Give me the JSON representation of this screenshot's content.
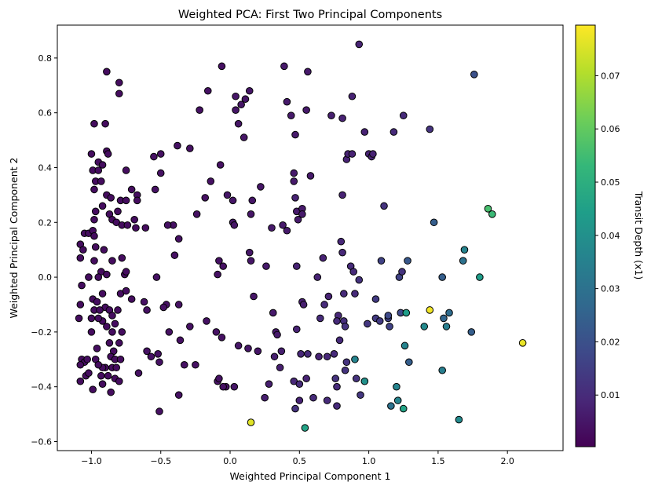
{
  "chart_data": {
    "type": "scatter",
    "title": "Weighted PCA: First Two Principal Components",
    "xlabel": "Weighted Principal Component 1",
    "ylabel": "Weighted Principal Component 2",
    "xlim": [
      -1.246,
      2.401
    ],
    "ylim": [
      -0.633,
      0.92
    ],
    "xticks": [
      -1.0,
      -0.5,
      0.0,
      0.5,
      1.0,
      1.5,
      2.0
    ],
    "xtick_labels": [
      "−1.0",
      "−0.5",
      "0.0",
      "0.5",
      "1.0",
      "1.5",
      "2.0"
    ],
    "yticks": [
      -0.6,
      -0.4,
      -0.2,
      0.0,
      0.2,
      0.4,
      0.6,
      0.8
    ],
    "ytick_labels": [
      "−0.6",
      "−0.4",
      "−0.2",
      "0.0",
      "0.2",
      "0.4",
      "0.6",
      "0.8"
    ],
    "grid": false,
    "colorbar": {
      "label": "Transit Depth (x1)",
      "colormap": "viridis",
      "range": [
        0.0003,
        0.0795
      ],
      "ticks": [
        0.01,
        0.02,
        0.03,
        0.04,
        0.05,
        0.06,
        0.07
      ],
      "tick_labels": [
        "0.01",
        "0.02",
        "0.03",
        "0.04",
        "0.05",
        "0.06",
        "0.07"
      ]
    },
    "point_fields": [
      "x",
      "y",
      "transit_depth"
    ],
    "points": [
      [
        -0.89,
        0.75,
        0.003
      ],
      [
        -0.8,
        0.71,
        0.003
      ],
      [
        -0.8,
        0.67,
        0.003
      ],
      [
        -0.98,
        0.56,
        0.003
      ],
      [
        -0.9,
        0.56,
        0.003
      ],
      [
        -1.0,
        0.45,
        0.003
      ],
      [
        -0.89,
        0.46,
        0.003
      ],
      [
        -0.88,
        0.45,
        0.003
      ],
      [
        -0.95,
        0.42,
        0.003
      ],
      [
        -0.92,
        0.41,
        0.003
      ],
      [
        -0.99,
        0.39,
        0.003
      ],
      [
        -0.95,
        0.39,
        0.003
      ],
      [
        -0.75,
        0.39,
        0.003
      ],
      [
        -0.97,
        0.35,
        0.003
      ],
      [
        -0.93,
        0.35,
        0.003
      ],
      [
        -0.98,
        0.32,
        0.003
      ],
      [
        -0.71,
        0.32,
        0.003
      ],
      [
        -0.67,
        0.3,
        0.003
      ],
      [
        -0.67,
        0.28,
        0.003
      ],
      [
        -0.89,
        0.3,
        0.003
      ],
      [
        -0.86,
        0.29,
        0.003
      ],
      [
        -0.79,
        0.28,
        0.003
      ],
      [
        -0.75,
        0.28,
        0.003
      ],
      [
        -0.97,
        0.24,
        0.003
      ],
      [
        -0.92,
        0.26,
        0.003
      ],
      [
        -0.81,
        0.24,
        0.003
      ],
      [
        -0.87,
        0.23,
        0.003
      ],
      [
        -0.85,
        0.21,
        0.003
      ],
      [
        -0.82,
        0.2,
        0.003
      ],
      [
        -0.78,
        0.19,
        0.003
      ],
      [
        -0.69,
        0.21,
        0.003
      ],
      [
        -0.68,
        0.18,
        0.003
      ],
      [
        -0.61,
        0.18,
        0.003
      ],
      [
        -0.74,
        0.19,
        0.003
      ],
      [
        -0.98,
        0.21,
        0.003
      ],
      [
        -1.05,
        0.16,
        0.003
      ],
      [
        -1.02,
        0.16,
        0.003
      ],
      [
        -0.99,
        0.17,
        0.003
      ],
      [
        -0.98,
        0.15,
        0.003
      ],
      [
        -1.08,
        0.12,
        0.003
      ],
      [
        -0.97,
        0.11,
        0.003
      ],
      [
        -0.91,
        0.1,
        0.003
      ],
      [
        -1.06,
        0.1,
        0.003
      ],
      [
        -1.08,
        0.07,
        0.003
      ],
      [
        -0.98,
        0.06,
        0.003
      ],
      [
        -0.78,
        0.07,
        0.003
      ],
      [
        -0.85,
        0.06,
        0.003
      ],
      [
        -0.93,
        0.02,
        0.003
      ],
      [
        -0.76,
        0.01,
        0.003
      ],
      [
        -1.02,
        0.0,
        0.003
      ],
      [
        -0.95,
        0.0,
        0.003
      ],
      [
        -0.89,
        0.01,
        0.003
      ],
      [
        -0.75,
        0.02,
        0.003
      ],
      [
        -1.08,
        -0.1,
        0.003
      ],
      [
        -0.99,
        -0.08,
        0.003
      ],
      [
        -0.96,
        -0.09,
        0.003
      ],
      [
        -0.92,
        -0.06,
        0.003
      ],
      [
        -0.79,
        -0.06,
        0.003
      ],
      [
        -0.75,
        -0.05,
        0.003
      ],
      [
        -0.71,
        -0.08,
        0.003
      ],
      [
        -1.07,
        -0.03,
        0.003
      ],
      [
        -0.9,
        -0.11,
        0.003
      ],
      [
        -0.98,
        -0.12,
        0.003
      ],
      [
        -0.94,
        -0.12,
        0.003
      ],
      [
        -0.87,
        -0.12,
        0.003
      ],
      [
        -0.85,
        -0.14,
        0.003
      ],
      [
        -0.81,
        -0.12,
        0.003
      ],
      [
        -1.0,
        -0.15,
        0.003
      ],
      [
        -0.92,
        -0.16,
        0.003
      ],
      [
        -0.95,
        -0.15,
        0.003
      ],
      [
        -0.89,
        -0.18,
        0.003
      ],
      [
        -1.09,
        -0.15,
        0.003
      ],
      [
        -0.83,
        -0.17,
        0.003
      ],
      [
        -0.78,
        -0.2,
        0.003
      ],
      [
        -1.0,
        -0.2,
        0.003
      ],
      [
        -0.85,
        -0.2,
        0.003
      ],
      [
        -0.8,
        -0.24,
        0.003
      ],
      [
        -0.96,
        -0.26,
        0.003
      ],
      [
        -0.87,
        -0.24,
        0.003
      ],
      [
        -0.84,
        -0.27,
        0.003
      ],
      [
        -1.07,
        -0.3,
        0.003
      ],
      [
        -1.05,
        -0.31,
        0.003
      ],
      [
        -1.08,
        -0.32,
        0.003
      ],
      [
        -1.03,
        -0.3,
        0.003
      ],
      [
        -0.97,
        -0.3,
        0.003
      ],
      [
        -0.86,
        -0.29,
        0.003
      ],
      [
        -0.83,
        -0.3,
        0.003
      ],
      [
        -0.79,
        -0.3,
        0.003
      ],
      [
        -0.9,
        -0.33,
        0.003
      ],
      [
        -0.92,
        -0.33,
        0.003
      ],
      [
        -0.85,
        -0.33,
        0.003
      ],
      [
        -0.82,
        -0.33,
        0.003
      ],
      [
        -0.95,
        -0.32,
        0.003
      ],
      [
        -0.83,
        -0.37,
        0.003
      ],
      [
        -0.88,
        -0.36,
        0.003
      ],
      [
        -1.04,
        -0.36,
        0.003
      ],
      [
        -1.08,
        -0.38,
        0.003
      ],
      [
        -1.02,
        -0.35,
        0.003
      ],
      [
        -0.93,
        -0.36,
        0.003
      ],
      [
        -0.99,
        -0.41,
        0.003
      ],
      [
        -0.92,
        -0.39,
        0.003
      ],
      [
        -0.8,
        -0.38,
        0.003
      ],
      [
        -0.86,
        -0.42,
        0.003
      ],
      [
        -0.06,
        0.77,
        0.004
      ],
      [
        -0.16,
        0.68,
        0.004
      ],
      [
        -0.22,
        0.61,
        0.004
      ],
      [
        -0.38,
        0.48,
        0.004
      ],
      [
        -0.29,
        0.47,
        0.004
      ],
      [
        -0.5,
        0.45,
        0.004
      ],
      [
        -0.55,
        0.44,
        0.004
      ],
      [
        -0.5,
        0.38,
        0.004
      ],
      [
        -0.54,
        0.32,
        0.004
      ],
      [
        -0.41,
        0.19,
        0.004
      ],
      [
        -0.45,
        0.19,
        0.004
      ],
      [
        -0.37,
        0.14,
        0.004
      ],
      [
        -0.4,
        0.08,
        0.004
      ],
      [
        -0.24,
        0.23,
        0.004
      ],
      [
        -0.18,
        0.29,
        0.004
      ],
      [
        -0.14,
        0.35,
        0.004
      ],
      [
        -0.07,
        0.41,
        0.004
      ],
      [
        -0.08,
        0.06,
        0.004
      ],
      [
        -0.05,
        0.04,
        0.004
      ],
      [
        -0.09,
        0.01,
        0.004
      ],
      [
        -0.53,
        0.0,
        0.004
      ],
      [
        -0.62,
        -0.09,
        0.004
      ],
      [
        -0.6,
        -0.12,
        0.004
      ],
      [
        -0.46,
        -0.1,
        0.004
      ],
      [
        -0.48,
        -0.11,
        0.004
      ],
      [
        -0.37,
        -0.1,
        0.004
      ],
      [
        -0.44,
        -0.2,
        0.004
      ],
      [
        -0.36,
        -0.23,
        0.004
      ],
      [
        -0.29,
        -0.18,
        0.004
      ],
      [
        -0.17,
        -0.16,
        0.004
      ],
      [
        -0.1,
        -0.2,
        0.004
      ],
      [
        -0.06,
        -0.22,
        0.004
      ],
      [
        -0.6,
        -0.27,
        0.004
      ],
      [
        -0.52,
        -0.28,
        0.004
      ],
      [
        -0.51,
        -0.31,
        0.004
      ],
      [
        -0.57,
        -0.29,
        0.004
      ],
      [
        -0.66,
        -0.35,
        0.004
      ],
      [
        -0.33,
        -0.32,
        0.004
      ],
      [
        -0.25,
        -0.32,
        0.004
      ],
      [
        -0.09,
        -0.38,
        0.004
      ],
      [
        -0.08,
        -0.37,
        0.004
      ],
      [
        -0.03,
        -0.4,
        0.004
      ],
      [
        -0.05,
        -0.4,
        0.004
      ],
      [
        0.03,
        -0.4,
        0.005
      ],
      [
        -0.37,
        -0.43,
        0.004
      ],
      [
        -0.51,
        -0.49,
        0.004
      ],
      [
        -0.02,
        0.3,
        0.005
      ],
      [
        0.02,
        0.28,
        0.005
      ],
      [
        0.02,
        0.2,
        0.005
      ],
      [
        0.03,
        0.19,
        0.005
      ],
      [
        0.04,
        0.61,
        0.005
      ],
      [
        0.04,
        0.66,
        0.005
      ],
      [
        0.08,
        0.63,
        0.005
      ],
      [
        0.06,
        0.56,
        0.005
      ],
      [
        0.1,
        0.51,
        0.005
      ],
      [
        0.11,
        0.65,
        0.005
      ],
      [
        0.14,
        0.68,
        0.005
      ],
      [
        0.16,
        0.28,
        0.005
      ],
      [
        0.15,
        0.23,
        0.005
      ],
      [
        0.22,
        0.33,
        0.005
      ],
      [
        0.14,
        0.09,
        0.005
      ],
      [
        0.15,
        0.06,
        0.005
      ],
      [
        0.13,
        -0.26,
        0.005
      ],
      [
        0.17,
        -0.07,
        0.005
      ],
      [
        0.2,
        -0.27,
        0.005
      ],
      [
        0.06,
        -0.25,
        0.005
      ],
      [
        0.26,
        0.04,
        0.006
      ],
      [
        0.3,
        0.18,
        0.006
      ],
      [
        0.38,
        0.19,
        0.006
      ],
      [
        0.41,
        0.17,
        0.006
      ],
      [
        0.31,
        -0.13,
        0.006
      ],
      [
        0.33,
        -0.2,
        0.006
      ],
      [
        0.34,
        -0.21,
        0.006
      ],
      [
        0.32,
        -0.29,
        0.007
      ],
      [
        0.37,
        -0.27,
        0.007
      ],
      [
        0.28,
        -0.39,
        0.007
      ],
      [
        0.25,
        -0.44,
        0.007
      ],
      [
        0.36,
        -0.33,
        0.007
      ],
      [
        0.39,
        0.77,
        0.006
      ],
      [
        0.41,
        0.64,
        0.006
      ],
      [
        0.44,
        0.59,
        0.006
      ],
      [
        0.46,
        0.35,
        0.006
      ],
      [
        0.46,
        0.38,
        0.006
      ],
      [
        0.47,
        0.52,
        0.006
      ],
      [
        0.47,
        0.29,
        0.008
      ],
      [
        0.48,
        0.24,
        0.006
      ],
      [
        0.49,
        0.21,
        0.006
      ],
      [
        0.52,
        0.25,
        0.006
      ],
      [
        0.52,
        0.23,
        0.006
      ],
      [
        0.56,
        0.75,
        0.006
      ],
      [
        0.55,
        0.61,
        0.006
      ],
      [
        0.58,
        0.37,
        0.006
      ],
      [
        0.48,
        0.04,
        0.008
      ],
      [
        0.46,
        -0.38,
        0.009
      ],
      [
        0.47,
        -0.48,
        0.012
      ],
      [
        0.5,
        -0.39,
        0.01
      ],
      [
        0.5,
        -0.45,
        0.008
      ],
      [
        0.51,
        -0.28,
        0.009
      ],
      [
        0.55,
        -0.37,
        0.008
      ],
      [
        0.56,
        -0.28,
        0.01
      ],
      [
        0.54,
        -0.55,
        0.046
      ],
      [
        0.15,
        -0.53,
        0.076
      ],
      [
        0.52,
        -0.09,
        0.007
      ],
      [
        0.53,
        -0.1,
        0.007
      ],
      [
        0.48,
        -0.19,
        0.008
      ],
      [
        0.6,
        -0.44,
        0.01
      ],
      [
        0.63,
        0.0,
        0.008
      ],
      [
        0.64,
        -0.29,
        0.008
      ],
      [
        0.65,
        -0.15,
        0.01
      ],
      [
        0.67,
        0.07,
        0.008
      ],
      [
        0.68,
        -0.1,
        0.01
      ],
      [
        0.71,
        -0.07,
        0.008
      ],
      [
        0.7,
        -0.29,
        0.009
      ],
      [
        0.7,
        -0.45,
        0.01
      ],
      [
        0.73,
        0.59,
        0.007
      ],
      [
        0.75,
        -0.28,
        0.01
      ],
      [
        0.76,
        -0.37,
        0.012
      ],
      [
        0.77,
        -0.4,
        0.01
      ],
      [
        0.77,
        -0.47,
        0.01
      ],
      [
        0.78,
        -0.14,
        0.009
      ],
      [
        0.79,
        -0.23,
        0.01
      ],
      [
        0.77,
        -0.16,
        0.01
      ],
      [
        0.81,
        0.3,
        0.008
      ],
      [
        0.8,
        0.13,
        0.009
      ],
      [
        0.81,
        0.09,
        0.009
      ],
      [
        0.82,
        -0.06,
        0.01
      ],
      [
        0.82,
        -0.16,
        0.011
      ],
      [
        0.83,
        -0.18,
        0.012
      ],
      [
        0.81,
        0.58,
        0.008
      ],
      [
        0.84,
        0.43,
        0.008
      ],
      [
        0.85,
        0.45,
        0.008
      ],
      [
        0.84,
        -0.31,
        0.012
      ],
      [
        0.83,
        -0.34,
        0.012
      ],
      [
        0.87,
        0.04,
        0.01
      ],
      [
        0.88,
        0.66,
        0.008
      ],
      [
        0.88,
        0.45,
        0.008
      ],
      [
        0.89,
        0.02,
        0.01
      ],
      [
        0.9,
        -0.06,
        0.01
      ],
      [
        0.91,
        -0.37,
        0.012
      ],
      [
        0.93,
        0.85,
        0.008
      ],
      [
        0.93,
        -0.01,
        0.012
      ],
      [
        0.94,
        -0.43,
        0.013
      ],
      [
        0.97,
        0.53,
        0.008
      ],
      [
        0.97,
        -0.38,
        0.04
      ],
      [
        0.9,
        -0.3,
        0.036
      ],
      [
        0.99,
        -0.17,
        0.013
      ],
      [
        1.0,
        0.45,
        0.008
      ],
      [
        1.02,
        0.44,
        0.008
      ],
      [
        1.03,
        0.45,
        0.008
      ],
      [
        1.05,
        -0.08,
        0.014
      ],
      [
        1.05,
        -0.15,
        0.014
      ],
      [
        1.08,
        -0.16,
        0.014
      ],
      [
        1.09,
        0.06,
        0.016
      ],
      [
        1.11,
        0.26,
        0.012
      ],
      [
        1.14,
        -0.15,
        0.016
      ],
      [
        1.14,
        -0.14,
        0.018
      ],
      [
        1.15,
        -0.18,
        0.016
      ],
      [
        1.18,
        0.53,
        0.01
      ],
      [
        1.16,
        -0.47,
        0.03
      ],
      [
        1.2,
        -0.4,
        0.036
      ],
      [
        1.21,
        -0.45,
        0.036
      ],
      [
        1.22,
        0.0,
        0.016
      ],
      [
        1.23,
        -0.13,
        0.018
      ],
      [
        1.24,
        0.02,
        0.012
      ],
      [
        1.25,
        0.59,
        0.01
      ],
      [
        1.25,
        -0.48,
        0.046
      ],
      [
        1.27,
        -0.13,
        0.044
      ],
      [
        1.26,
        -0.25,
        0.036
      ],
      [
        1.28,
        0.06,
        0.022
      ],
      [
        1.29,
        -0.31,
        0.024
      ],
      [
        1.4,
        -0.18,
        0.038
      ],
      [
        1.44,
        0.54,
        0.012
      ],
      [
        1.44,
        -0.12,
        0.078
      ],
      [
        1.47,
        0.2,
        0.024
      ],
      [
        1.53,
        0.0,
        0.024
      ],
      [
        1.54,
        -0.15,
        0.026
      ],
      [
        1.56,
        -0.18,
        0.034
      ],
      [
        1.53,
        -0.34,
        0.034
      ],
      [
        1.58,
        -0.13,
        0.028
      ],
      [
        1.65,
        -0.52,
        0.038
      ],
      [
        1.68,
        0.06,
        0.03
      ],
      [
        1.69,
        0.1,
        0.036
      ],
      [
        1.74,
        -0.2,
        0.024
      ],
      [
        1.76,
        0.74,
        0.02
      ],
      [
        1.8,
        0.0,
        0.044
      ],
      [
        1.86,
        0.25,
        0.056
      ],
      [
        1.89,
        0.23,
        0.054
      ],
      [
        2.11,
        -0.24,
        0.077
      ]
    ]
  }
}
